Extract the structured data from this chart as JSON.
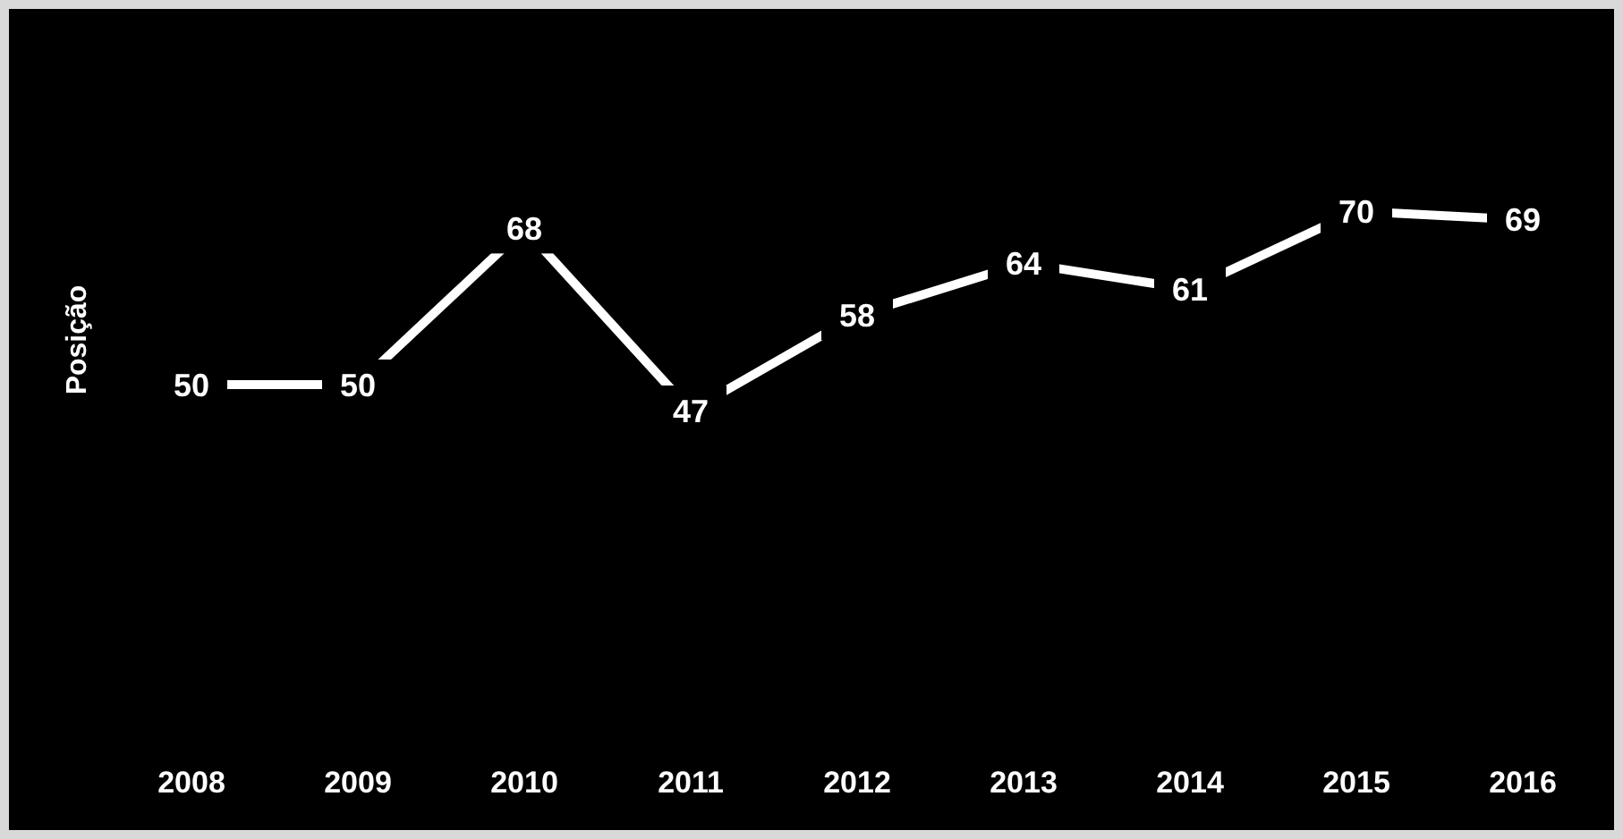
{
  "chart_data": {
    "type": "line",
    "ylabel": "Posição",
    "categories": [
      "2008",
      "2009",
      "2010",
      "2011",
      "2012",
      "2013",
      "2014",
      "2015",
      "2016"
    ],
    "series": [
      {
        "color": "#ffffff",
        "values": [
          50,
          50,
          68,
          47,
          58,
          64,
          61,
          70,
          69
        ]
      }
    ],
    "tick_labels": "x",
    "data_labels": true,
    "line_style": "solid"
  }
}
